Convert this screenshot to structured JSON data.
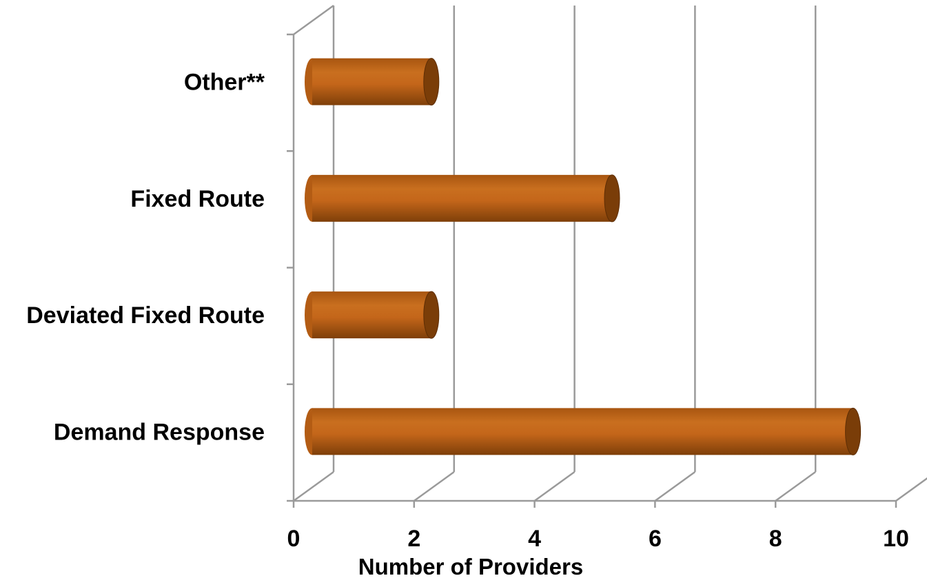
{
  "chart_data": {
    "type": "bar",
    "orientation": "horizontal",
    "style": "3d-cylinder",
    "categories": [
      "Demand Response",
      "Deviated Fixed Route",
      "Fixed Route",
      "Other**"
    ],
    "values": [
      9,
      2,
      5,
      2
    ],
    "series": [
      {
        "values": [
          9,
          2,
          5,
          2
        ]
      }
    ],
    "title": "",
    "xlabel": "Number of Providers",
    "ylabel": "",
    "xlim": [
      0,
      10
    ],
    "xticks": [
      0,
      2,
      4,
      6,
      8,
      10
    ],
    "xtick_labels": [
      "0",
      "2",
      "4",
      "6",
      "8",
      "10"
    ],
    "grid": true,
    "legend": "none",
    "colors": {
      "bar": "#c46a1c",
      "bar_dark": "#7a3d08",
      "bar_light": "#d98a3c",
      "grid": "#9a9a9a"
    }
  }
}
